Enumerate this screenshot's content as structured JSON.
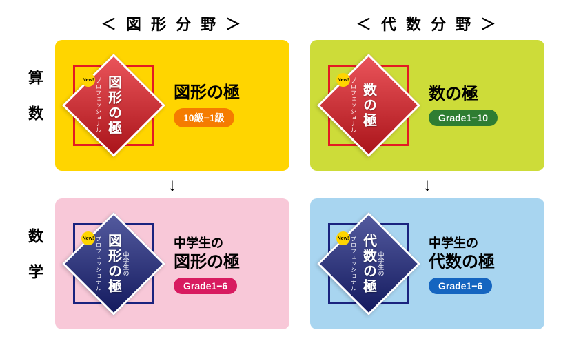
{
  "headers": {
    "col1": "＜ 図 形 分 野 ＞",
    "col2": "＜ 代 数 分 野 ＞",
    "row1": "算数",
    "row2": "数学"
  },
  "arrow": "↓",
  "cards": {
    "tl": {
      "bg": "#ffd500",
      "under_sq": "#e31b23",
      "diamond_class": "diamond-red",
      "badge_main": "図形の極",
      "badge_sub": "プロフェッショナル",
      "badge_top": "",
      "pretitle": "",
      "title": "図形の極",
      "pill_text": "10級−1級",
      "pill_color": "#f57c00",
      "new_badge": true
    },
    "tr": {
      "bg": "#cddc39",
      "under_sq": "#e31b23",
      "diamond_class": "diamond-red",
      "badge_main": "数の極",
      "badge_sub": "プロフェッショナル",
      "badge_top": "",
      "pretitle": "",
      "title": "数の極",
      "pill_text": "Grade1−10",
      "pill_color": "#2e7d32",
      "new_badge": true
    },
    "bl": {
      "bg": "#f8c8d8",
      "under_sq": "#1a237e",
      "diamond_class": "diamond-blue",
      "badge_main": "図形の極",
      "badge_sub": "プロフェッショナル",
      "badge_top": "中学生の",
      "pretitle": "中学生の",
      "title": "図形の極",
      "pill_text": "Grade1−6",
      "pill_color": "#d81b60",
      "new_badge": true
    },
    "br": {
      "bg": "#a8d5f0",
      "under_sq": "#1a237e",
      "diamond_class": "diamond-blue",
      "badge_main": "代数の極",
      "badge_sub": "プロフェッショナル",
      "badge_top": "中学生の",
      "pretitle": "中学生の",
      "title": "代数の極",
      "pill_text": "Grade1−6",
      "pill_color": "#1565c0",
      "new_badge": true
    }
  }
}
